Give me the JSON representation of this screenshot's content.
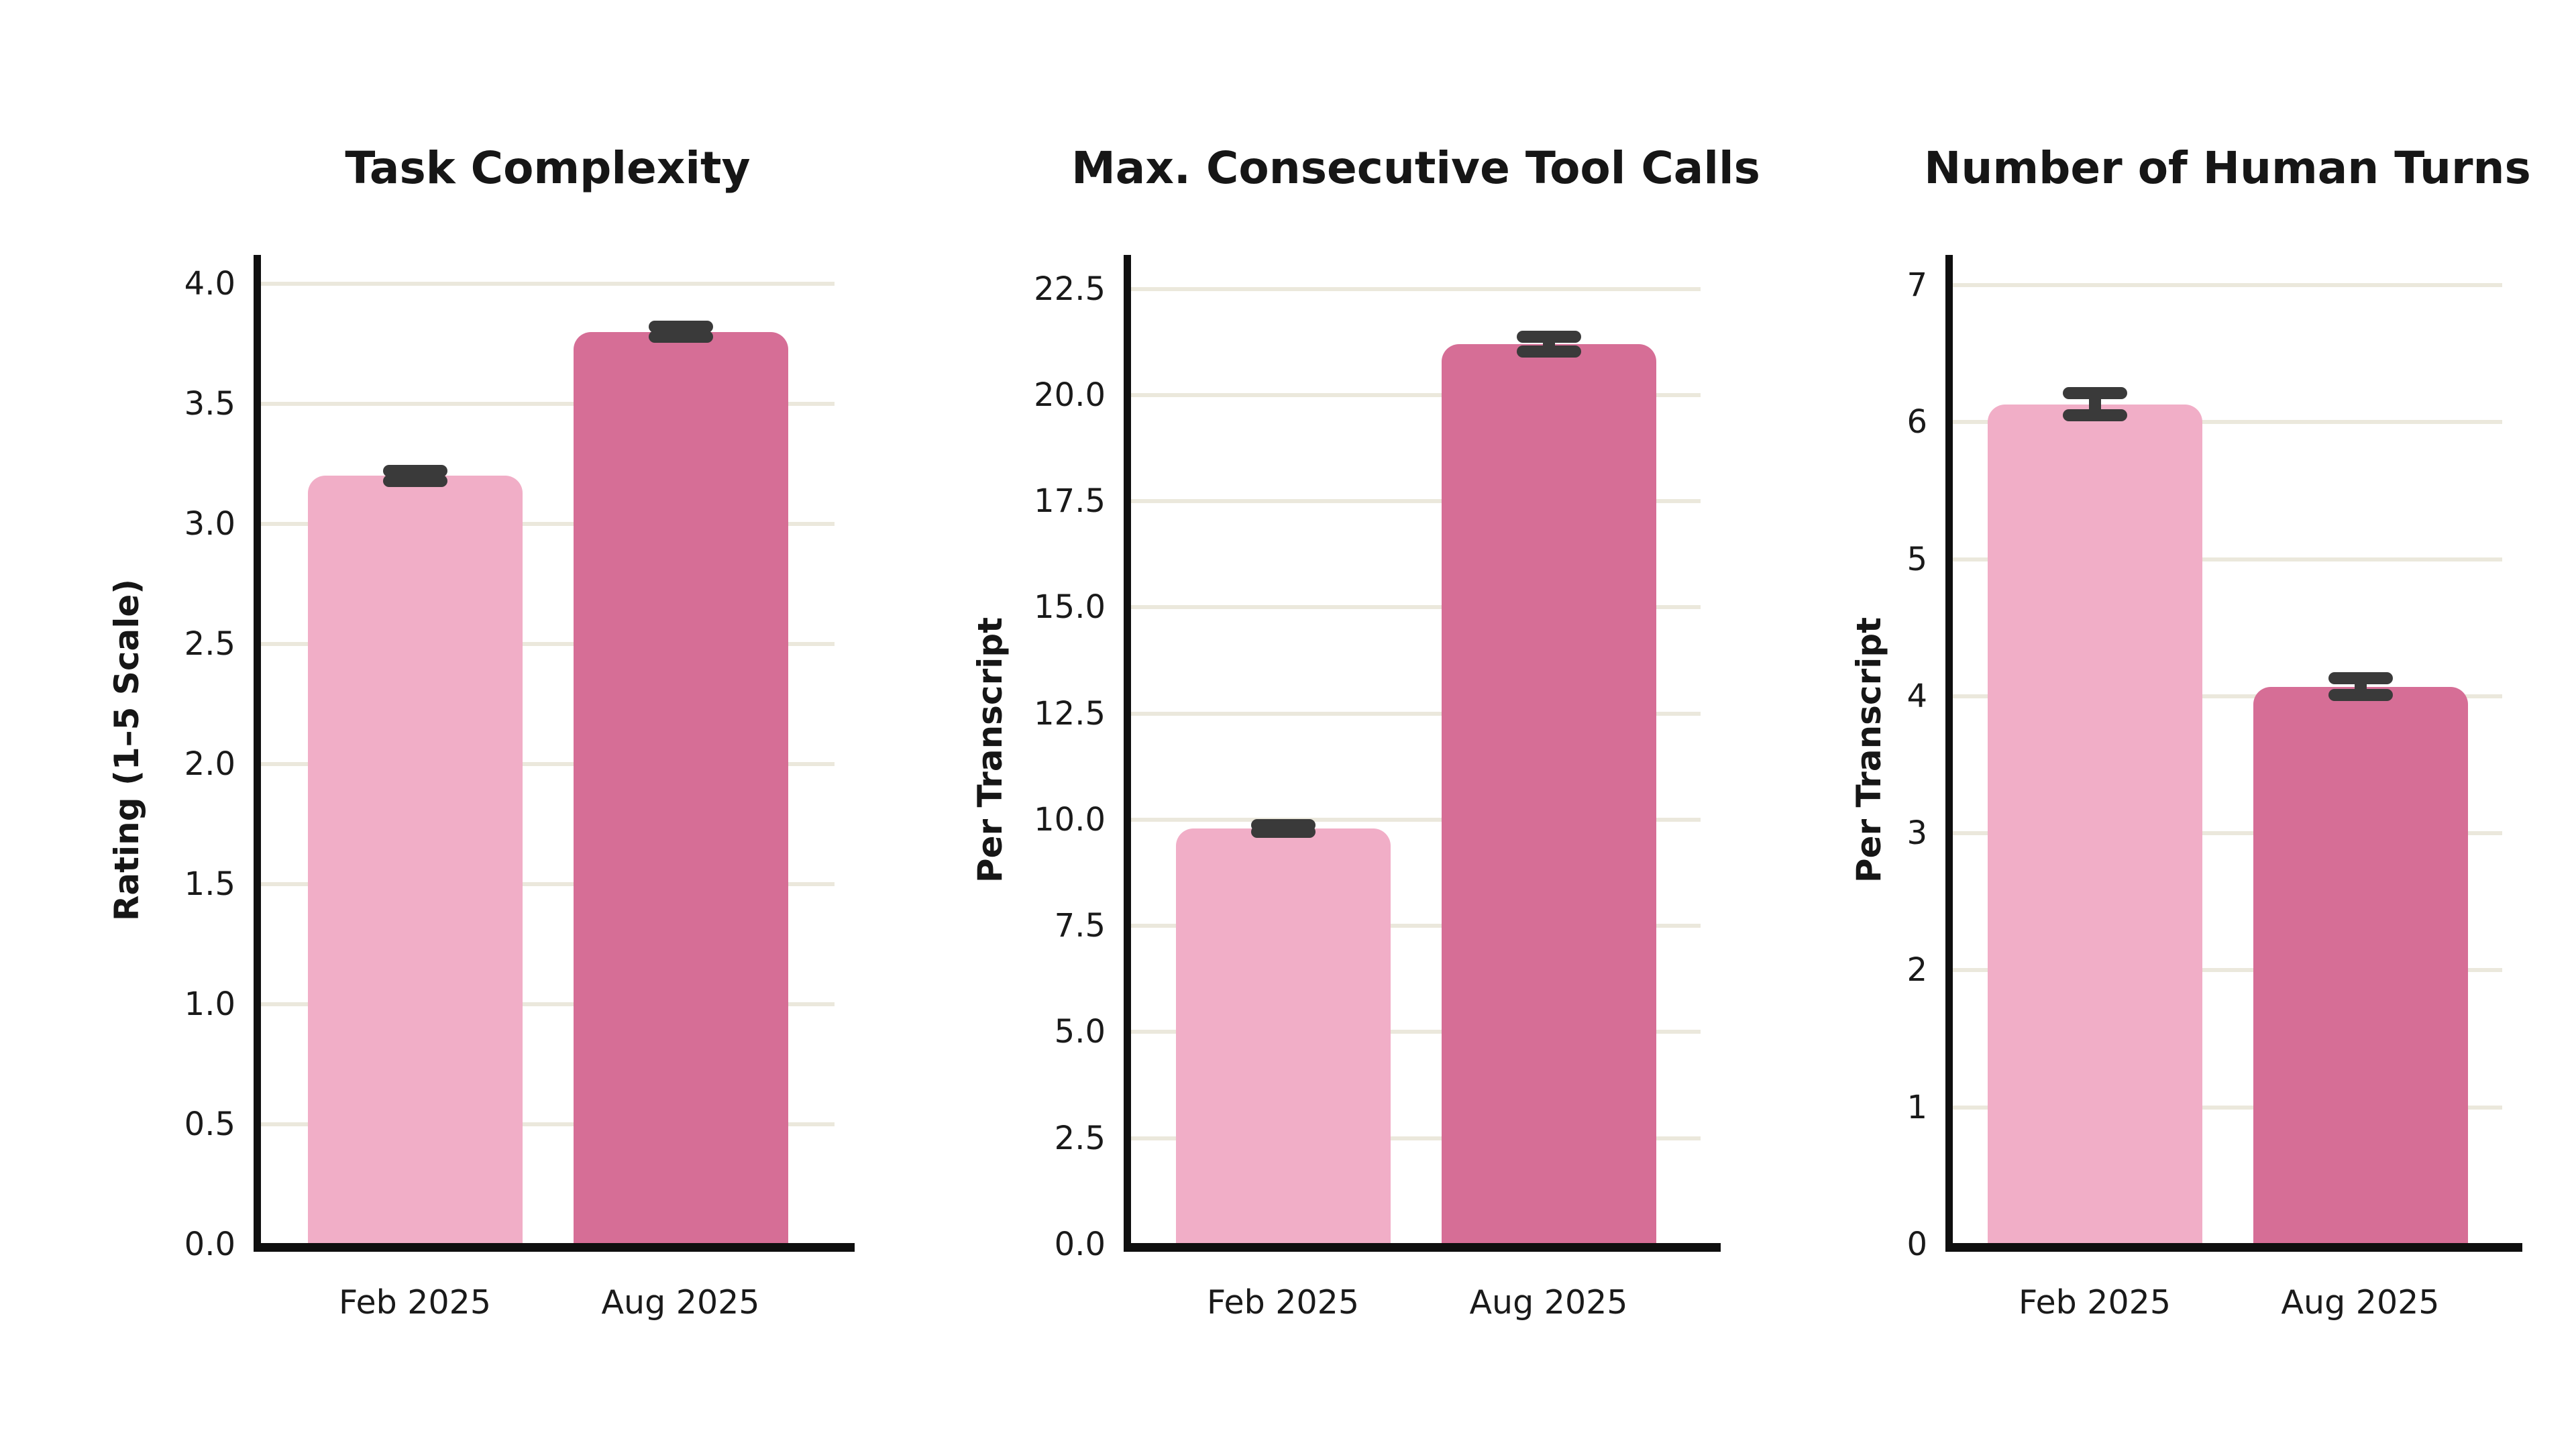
{
  "page": {
    "background_color": "#ffffff",
    "description_labels": {
      "feb": "Feb 2025",
      "aug": "Aug 2025"
    }
  },
  "palette": {
    "bar_feb_2025": "#f1aec7",
    "bar_aug_2025": "#d66e96",
    "error_bar": "#3a3a3a",
    "gridline": "#ebe8dc",
    "axis_line": "#0f0f0f",
    "text": "#161616"
  },
  "chart_data": [
    {
      "type": "bar",
      "title": "Task Complexity",
      "xlabel": "",
      "ylabel": "Rating (1–5 Scale)",
      "categories": [
        "Feb 2025",
        "Aug 2025"
      ],
      "values": [
        3.2,
        3.8
      ],
      "errors": [
        0.02,
        0.02
      ],
      "bar_colors": [
        "#f1aec7",
        "#d66e96"
      ],
      "ylim": [
        0,
        4.12
      ],
      "ytick_values": [
        0,
        0.5,
        1.0,
        1.5,
        2.0,
        2.5,
        3.0,
        3.5,
        4.0
      ],
      "ytick_labels": [
        "0.0",
        "0.5",
        "1.0",
        "1.5",
        "2.0",
        "2.5",
        "3.0",
        "3.5",
        "4.0"
      ],
      "grid": true,
      "legend_position": "none"
    },
    {
      "type": "bar",
      "title": "Max. Consecutive Tool Calls",
      "xlabel": "",
      "ylabel": "Per Transcript",
      "categories": [
        "Feb 2025",
        "Aug 2025"
      ],
      "values": [
        9.8,
        21.2
      ],
      "errors": [
        0.08,
        0.17
      ],
      "bar_colors": [
        "#f1aec7",
        "#d66e96"
      ],
      "ylim": [
        0,
        23.3
      ],
      "ytick_values": [
        0,
        2.5,
        5.0,
        7.5,
        10.0,
        12.5,
        15.0,
        17.5,
        20.0,
        22.5
      ],
      "ytick_labels": [
        "0.0",
        "2.5",
        "5.0",
        "7.5",
        "10.0",
        "12.5",
        "15.0",
        "17.5",
        "20.0",
        "22.5"
      ],
      "grid": true,
      "legend_position": "none"
    },
    {
      "type": "bar",
      "title": "Number of Human Turns",
      "xlabel": "",
      "ylabel": "Per Transcript",
      "categories": [
        "Feb 2025",
        "Aug 2025"
      ],
      "values": [
        6.13,
        4.07
      ],
      "errors": [
        0.08,
        0.06
      ],
      "bar_colors": [
        "#f1aec7",
        "#d66e96"
      ],
      "ylim": [
        0,
        7.22
      ],
      "ytick_values": [
        0,
        1,
        2,
        3,
        4,
        5,
        6,
        7
      ],
      "ytick_labels": [
        "0",
        "1",
        "2",
        "3",
        "4",
        "5",
        "6",
        "7"
      ],
      "grid": true,
      "legend_position": "none"
    }
  ]
}
